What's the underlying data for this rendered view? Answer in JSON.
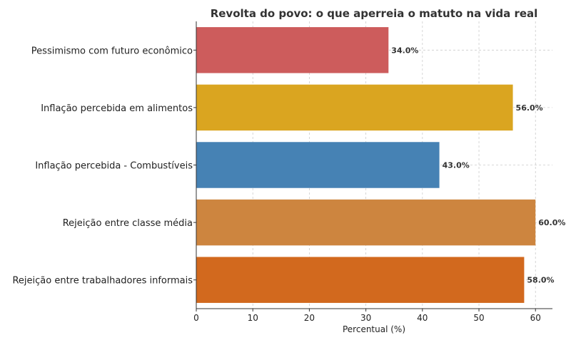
{
  "chart_data": {
    "type": "bar",
    "orientation": "horizontal",
    "title": "Revolta do povo: o que aperreia o matuto na vida real",
    "xlabel": "Percentual (%)",
    "ylabel": "",
    "xlim": [
      0,
      63
    ],
    "xticks": [
      "0",
      "10",
      "20",
      "30",
      "40",
      "50",
      "60"
    ],
    "grid": true,
    "categories": [
      "Pessimismo com futuro econômico",
      "Inflação percebida em alimentos",
      "Inflação percebida - Combustíveis",
      "Rejeição entre classe média",
      "Rejeição entre trabalhadores informais"
    ],
    "values": [
      34.0,
      56.0,
      43.0,
      60.0,
      58.0
    ],
    "value_labels": [
      "34.0%",
      "56.0%",
      "43.0%",
      "60.0%",
      "58.0%"
    ],
    "colors": [
      "#cd5c5c",
      "#daa520",
      "#4682b4",
      "#cd853f",
      "#d2691e"
    ]
  }
}
